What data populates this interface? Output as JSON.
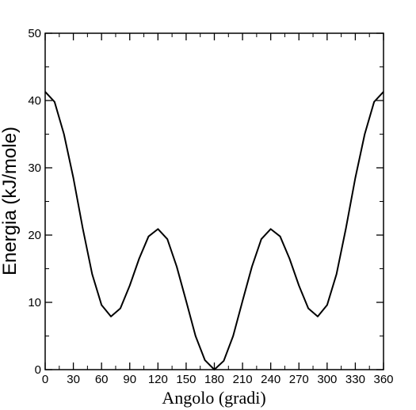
{
  "chart_data": {
    "type": "line",
    "title": "",
    "xlabel": "Angolo (gradi)",
    "ylabel": "Energia (kJ/mole)",
    "xlim": [
      0,
      360
    ],
    "ylim": [
      0,
      50
    ],
    "xticks": [
      0,
      30,
      60,
      90,
      120,
      150,
      180,
      210,
      240,
      270,
      300,
      330,
      360
    ],
    "yticks": [
      0,
      10,
      20,
      30,
      40,
      50
    ],
    "xtick_labels": [
      "0",
      "30",
      "60",
      "90",
      "120",
      "150",
      "180",
      "210",
      "240",
      "270",
      "300",
      "330",
      "360"
    ],
    "ytick_labels": [
      "0",
      "10",
      "20",
      "30",
      "40",
      "50"
    ],
    "grid": false,
    "legend": "none",
    "series": [
      {
        "color": "#000000",
        "x": [
          0,
          10,
          20,
          30,
          40,
          50,
          60,
          70,
          80,
          90,
          100,
          110,
          120,
          130,
          140,
          150,
          160,
          170,
          180,
          190,
          200,
          210,
          220,
          230,
          240,
          250,
          260,
          270,
          280,
          290,
          300,
          310,
          320,
          330,
          340,
          350,
          360
        ],
        "y": [
          41.3,
          39.8,
          35.0,
          28.5,
          21.0,
          14.2,
          9.6,
          7.9,
          9.1,
          12.5,
          16.5,
          19.8,
          20.9,
          19.4,
          15.3,
          10.2,
          5.0,
          1.4,
          0.0,
          1.3,
          5.0,
          10.2,
          15.3,
          19.4,
          20.9,
          19.8,
          16.5,
          12.5,
          9.1,
          7.9,
          9.6,
          14.2,
          21.0,
          28.5,
          35.0,
          39.8,
          41.3
        ]
      }
    ]
  }
}
